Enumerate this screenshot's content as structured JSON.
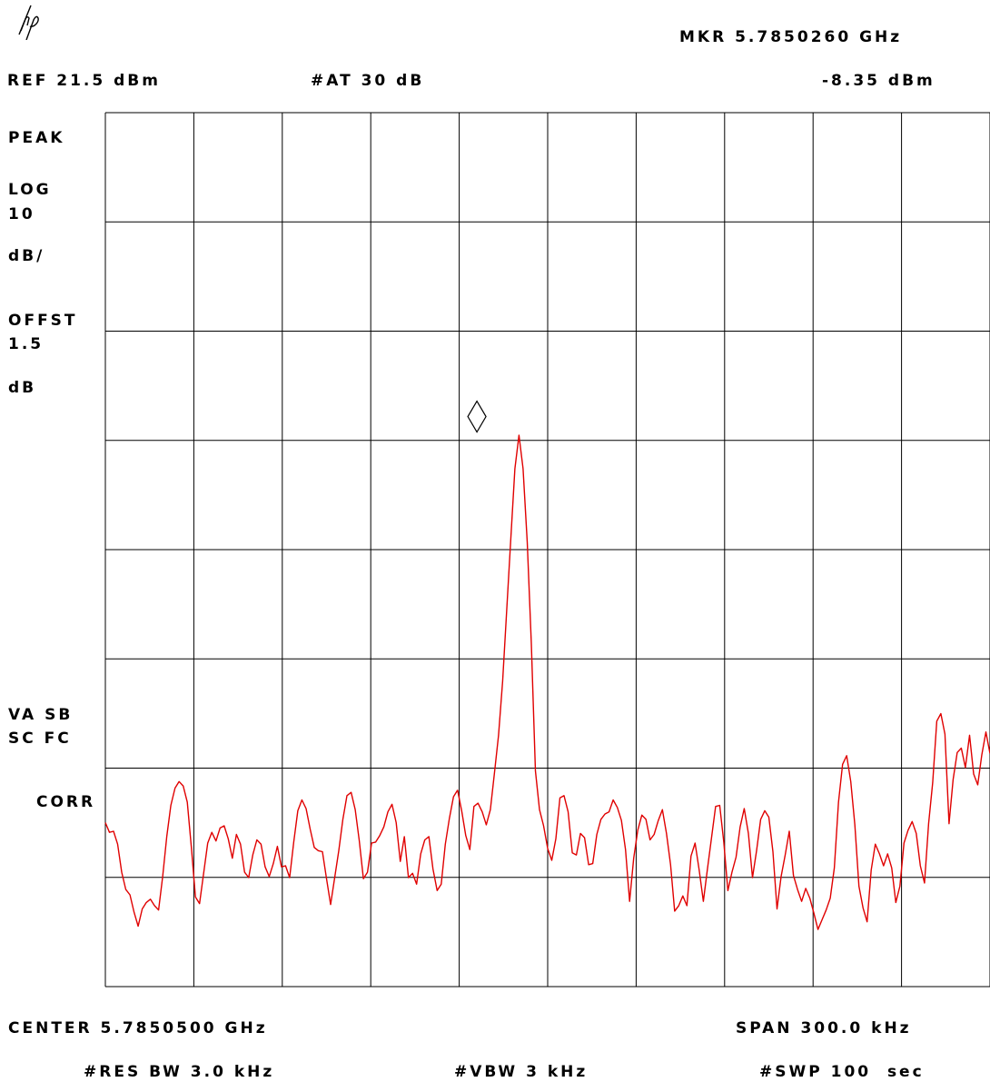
{
  "header": {
    "marker_readout": "MKR 5.7850260 GHz",
    "marker_level": "-8.35 dBm",
    "reference": "REF 21.5 dBm",
    "attenuation": "#AT 30 dB"
  },
  "side_labels": {
    "detector": "PEAK",
    "scale_line1": "LOG",
    "scale_line2": "10",
    "scale_line3": "dB/",
    "offset_line1": "OFFST",
    "offset_line2": "1.5",
    "offset_line3": "dB",
    "status_line1": "VA SB",
    "status_line2": "SC FC",
    "corr": "CORR"
  },
  "footer": {
    "center": "CENTER 5.7850500 GHz",
    "span": "SPAN 300.0 kHz",
    "res_bw": "#RES BW 3.0 kHz",
    "vbw": "#VBW 3 kHz",
    "sweep": "#SWP 100  sec"
  },
  "colors": {
    "trace": "#e00000",
    "grid": "#000000",
    "background": "#ffffff"
  },
  "icons": {
    "logo": "hp-logo-icon",
    "marker": "diamond-marker-icon"
  },
  "chart_data": {
    "type": "line",
    "xlabel": "",
    "ylabel": "",
    "xlim": [
      5.7849,
      5.7852
    ],
    "x_unit": "GHz",
    "ylim": [
      -59.5,
      21.5
    ],
    "y_unit": "dBm",
    "grid": true,
    "grid_divisions": {
      "x": 10,
      "y": 8
    },
    "marker": {
      "x": 5.785026,
      "y": -8.35
    },
    "series": [
      {
        "values": [
          -44.3,
          -45.2,
          -45.1,
          -46.3,
          -48.9,
          -50.5,
          -51.0,
          -52.6,
          -53.9,
          -52.3,
          -51.7,
          -51.4,
          -52.0,
          -52.4,
          -49.3,
          -45.6,
          -42.7,
          -41.1,
          -40.5,
          -40.9,
          -42.4,
          -46.6,
          -51.2,
          -51.8,
          -49.0,
          -46.2,
          -45.2,
          -46.0,
          -44.8,
          -44.6,
          -45.8,
          -47.6,
          -45.4,
          -46.3,
          -48.9,
          -49.4,
          -47.3,
          -45.9,
          -46.3,
          -48.4,
          -49.3,
          -48.1,
          -46.5,
          -48.4,
          -48.3,
          -49.4,
          -46.1,
          -43.2,
          -42.2,
          -43.0,
          -44.9,
          -46.6,
          -46.9,
          -47.0,
          -49.5,
          -51.9,
          -49.4,
          -46.9,
          -44.0,
          -41.8,
          -41.5,
          -43.1,
          -46.0,
          -49.5,
          -48.9,
          -46.2,
          -46.1,
          -45.5,
          -44.7,
          -43.3,
          -42.6,
          -44.3,
          -47.9,
          -45.6,
          -49.4,
          -49.0,
          -50.0,
          -47.2,
          -45.9,
          -45.6,
          -48.6,
          -50.6,
          -50.0,
          -46.3,
          -43.9,
          -41.9,
          -41.3,
          -43.2,
          -45.5,
          -46.8,
          -42.8,
          -42.5,
          -43.3,
          -44.5,
          -43.1,
          -39.7,
          -36.2,
          -31.2,
          -24.6,
          -18.0,
          -11.5,
          -8.4,
          -11.5,
          -18.3,
          -27.7,
          -39.5,
          -43.1,
          -44.6,
          -46.7,
          -47.8,
          -45.8,
          -42.0,
          -41.8,
          -43.3,
          -47.1,
          -47.3,
          -45.3,
          -45.7,
          -48.2,
          -48.1,
          -45.4,
          -44.0,
          -43.5,
          -43.3,
          -42.2,
          -42.9,
          -44.1,
          -46.8,
          -51.6,
          -47.6,
          -45.0,
          -43.6,
          -44.0,
          -45.9,
          -45.4,
          -44.1,
          -43.1,
          -45.3,
          -48.2,
          -52.5,
          -52.0,
          -51.1,
          -52.0,
          -47.4,
          -46.2,
          -48.7,
          -51.6,
          -48.6,
          -45.7,
          -42.8,
          -42.7,
          -46.1,
          -50.6,
          -48.9,
          -47.5,
          -44.7,
          -43.0,
          -45.3,
          -49.4,
          -46.9,
          -44.0,
          -43.2,
          -43.8,
          -47.0,
          -52.3,
          -49.3,
          -47.3,
          -45.1,
          -49.2,
          -50.5,
          -51.6,
          -50.4,
          -51.3,
          -52.7,
          -54.2,
          -53.3,
          -52.4,
          -51.3,
          -48.5,
          -42.4,
          -38.9,
          -38.1,
          -40.5,
          -44.5,
          -50.2,
          -52.2,
          -53.5,
          -48.7,
          -46.3,
          -47.2,
          -48.3,
          -47.2,
          -48.5,
          -51.7,
          -50.2,
          -46.2,
          -45.0,
          -44.2,
          -45.3,
          -48.3,
          -49.9,
          -44.4,
          -40.6,
          -34.9,
          -34.2,
          -36.1,
          -44.4,
          -40.3,
          -37.8,
          -37.4,
          -39.2,
          -36.2,
          -39.8,
          -40.8,
          -38.0,
          -35.9,
          -37.9
        ]
      }
    ]
  }
}
